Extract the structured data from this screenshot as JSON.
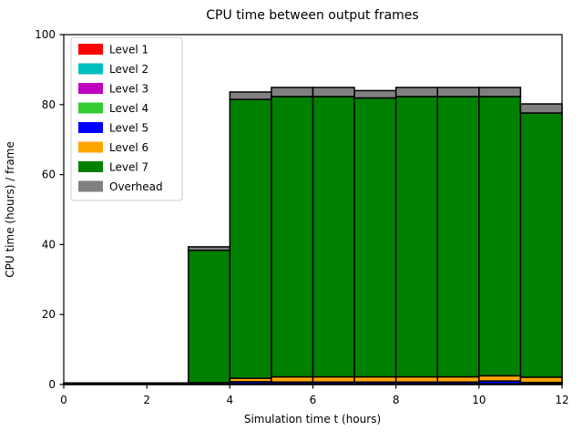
{
  "figure": {
    "background_color": "#ffffff",
    "axes_edge_color": "#000000",
    "bar_edge_color": "#000000",
    "legend_border_color": "#cccccc"
  },
  "chart_data": {
    "type": "bar",
    "stacked": true,
    "title": "CPU time between output frames",
    "xlabel": "Simulation time t (hours)",
    "ylabel": "CPU time (hours) / frame",
    "xlim": [
      0,
      12
    ],
    "ylim": [
      0,
      100
    ],
    "xticks": [
      0,
      2,
      4,
      6,
      8,
      10,
      12
    ],
    "yticks": [
      0,
      20,
      40,
      60,
      80,
      100
    ],
    "grid": false,
    "legend_position": "upper-left",
    "bin_edges": [
      0,
      1,
      2,
      3,
      4,
      5,
      6,
      7,
      8,
      9,
      10,
      11,
      12
    ],
    "bar_width": 1,
    "series": [
      {
        "name": "Level 1",
        "color": "#ff0000",
        "values": [
          0.05,
          0.05,
          0.05,
          0.05,
          0.05,
          0.05,
          0.05,
          0.05,
          0.05,
          0.05,
          0.05,
          0.05
        ]
      },
      {
        "name": "Level 2",
        "color": "#00bfbf",
        "values": [
          0.05,
          0.05,
          0.05,
          0.05,
          0.05,
          0.05,
          0.05,
          0.05,
          0.05,
          0.05,
          0.05,
          0.05
        ]
      },
      {
        "name": "Level 3",
        "color": "#bf00bf",
        "values": [
          0.05,
          0.05,
          0.05,
          0.05,
          0.05,
          0.05,
          0.05,
          0.05,
          0.05,
          0.05,
          0.05,
          0.05
        ]
      },
      {
        "name": "Level 4",
        "color": "#32cd32",
        "values": [
          0.05,
          0.05,
          0.05,
          0.05,
          0.05,
          0.05,
          0.05,
          0.05,
          0.05,
          0.05,
          0.05,
          0.05
        ]
      },
      {
        "name": "Level 5",
        "color": "#0000ff",
        "values": [
          0.05,
          0.05,
          0.05,
          0.15,
          0.6,
          0.5,
          0.5,
          0.5,
          0.5,
          0.5,
          0.8,
          0.4
        ]
      },
      {
        "name": "Level 6",
        "color": "#ffa500",
        "values": [
          0.05,
          0.05,
          0.05,
          0.2,
          1.0,
          1.5,
          1.5,
          1.5,
          1.5,
          1.5,
          1.5,
          1.5
        ]
      },
      {
        "name": "Level 7",
        "color": "#008000",
        "values": [
          0.1,
          0.1,
          0.1,
          37.8,
          79.7,
          80.1,
          80.1,
          79.7,
          80.1,
          80.1,
          79.8,
          75.5
        ]
      },
      {
        "name": "Overhead",
        "color": "#808080",
        "values": [
          0.05,
          0.05,
          0.05,
          1.0,
          2.1,
          2.6,
          2.6,
          2.1,
          2.6,
          2.6,
          2.6,
          2.6
        ]
      }
    ]
  }
}
